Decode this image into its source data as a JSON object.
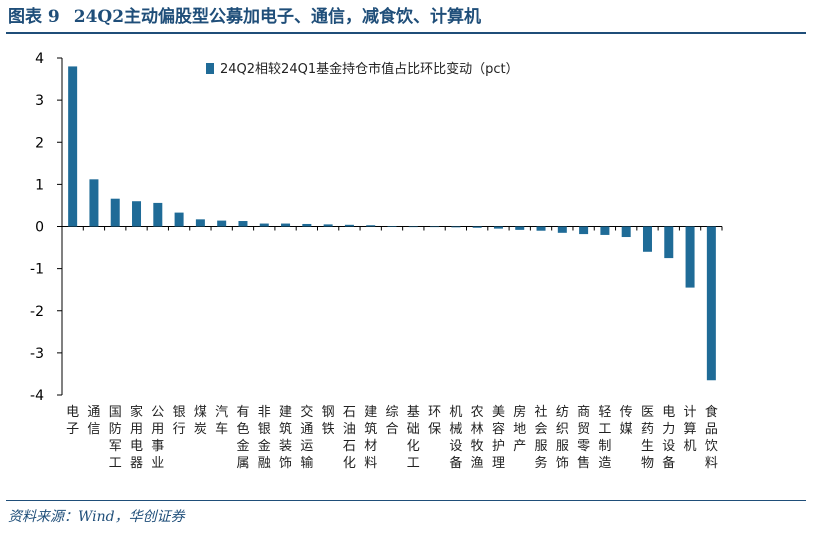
{
  "header": {
    "figure_label": "图表 9",
    "title": "24Q2主动偏股型公募加电子、通信，减食饮、计算机"
  },
  "footer": {
    "source": "资料来源：Wind，华创证券"
  },
  "chart_data": {
    "type": "bar",
    "title": "",
    "xlabel": "",
    "ylabel": "",
    "ylim": [
      -4,
      4
    ],
    "yticks": [
      -4,
      -3,
      -2,
      -1,
      0,
      1,
      2,
      3,
      4
    ],
    "grid": false,
    "legend_position": "top-center",
    "bar_color": "#1f6b97",
    "categories": [
      "电子",
      "通信",
      "国防军工",
      "家用电器",
      "公用事业",
      "银行",
      "煤炭",
      "汽车",
      "有色金属",
      "非银金融",
      "建筑装饰",
      "交通运输",
      "钢铁",
      "石油石化",
      "建筑材料",
      "综合",
      "基础化工",
      "环保",
      "机械设备",
      "农林牧渔",
      "美容护理",
      "房地产",
      "社会服务",
      "纺织服饰",
      "商贸零售",
      "轻工制造",
      "传媒",
      "医药生物",
      "电力设备",
      "计算机",
      "食品饮料"
    ],
    "series": [
      {
        "name": "24Q2相较24Q1基金持仓市值占比环比变动（pct）",
        "values": [
          3.8,
          1.12,
          0.66,
          0.6,
          0.56,
          0.33,
          0.17,
          0.14,
          0.13,
          0.07,
          0.07,
          0.06,
          0.05,
          0.04,
          0.03,
          0.01,
          0.0,
          -0.01,
          -0.02,
          -0.03,
          -0.05,
          -0.08,
          -0.1,
          -0.15,
          -0.18,
          -0.2,
          -0.25,
          -0.6,
          -0.75,
          -1.45,
          -3.65
        ]
      }
    ]
  }
}
